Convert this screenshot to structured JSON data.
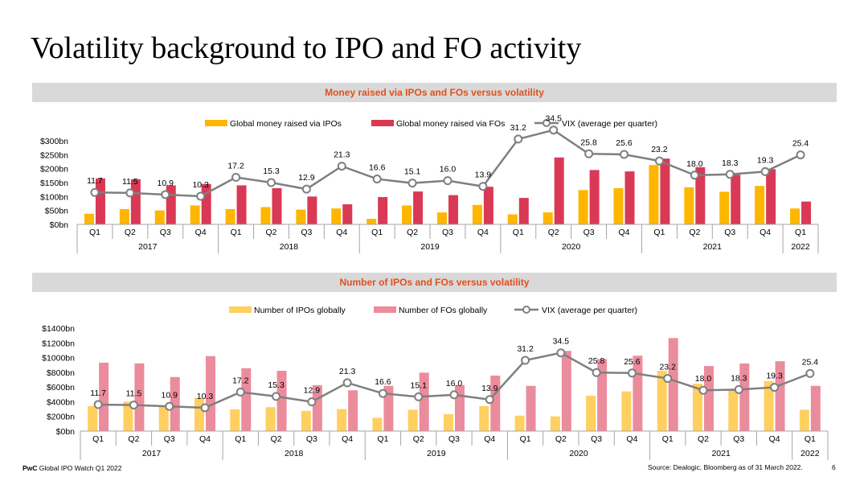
{
  "title": "Volatility background to IPO and FO activity",
  "footer": {
    "brand": "PwC",
    "report": "Global IPO Watch Q1 2022",
    "source": "Source: Dealogic, Bloomberg as of 31 March 2022.",
    "page": "6"
  },
  "colors": {
    "ipo_money": "#ffb600",
    "fo_money": "#d93954",
    "ipo_count": "#ffcf60",
    "fo_count": "#eb8c9d",
    "vix": "#7f7f7f",
    "band_title": "#e0501c",
    "band_bg": "#d9d9d9"
  },
  "chart_data": [
    {
      "type": "bar",
      "title": "Money raised via IPOs and FOs versus volatility",
      "categories": [
        "Q1",
        "Q2",
        "Q3",
        "Q4",
        "Q1",
        "Q2",
        "Q3",
        "Q4",
        "Q1",
        "Q2",
        "Q3",
        "Q4",
        "Q1",
        "Q2",
        "Q3",
        "Q4",
        "Q1",
        "Q2",
        "Q3",
        "Q4",
        "Q1"
      ],
      "years": [
        {
          "label": "2017",
          "span": 4
        },
        {
          "label": "2018",
          "span": 4
        },
        {
          "label": "2019",
          "span": 4
        },
        {
          "label": "2020",
          "span": 4
        },
        {
          "label": "2021",
          "span": 4
        },
        {
          "label": "2022",
          "span": 1
        }
      ],
      "yticks": [
        "$0bn",
        "$50bn",
        "$100bn",
        "$150bn",
        "$200bn",
        "$250bn",
        "$300bn"
      ],
      "ylim": [
        0,
        300
      ],
      "series": [
        {
          "name": "Global money raised via IPOs",
          "kind": "bar",
          "values": [
            38,
            55,
            50,
            68,
            55,
            62,
            53,
            57,
            20,
            68,
            43,
            70,
            36,
            43,
            123,
            130,
            213,
            133,
            117,
            138,
            57
          ]
        },
        {
          "name": "Global money raised via FOs",
          "kind": "bar",
          "values": [
            165,
            162,
            140,
            145,
            140,
            130,
            100,
            72,
            98,
            118,
            105,
            135,
            95,
            240,
            195,
            190,
            236,
            205,
            178,
            198,
            82
          ]
        },
        {
          "name": "VIX (average per quarter)",
          "kind": "line",
          "values": [
            11.7,
            11.5,
            10.9,
            10.3,
            17.2,
            15.3,
            12.9,
            21.3,
            16.6,
            15.1,
            16.0,
            13.9,
            31.2,
            34.5,
            25.8,
            25.6,
            23.2,
            18.0,
            18.3,
            19.3,
            25.4
          ]
        }
      ],
      "vix_labels": [
        "11.7",
        "11.5",
        "10.9",
        "10.3",
        "17.2",
        "15.3",
        "12.9",
        "21.3",
        "16.6",
        "15.1",
        "16.0",
        "13.9",
        "31.2",
        "34.5",
        "25.8",
        "25.6",
        "23.2",
        "18.0",
        "18.3",
        "19.3",
        "25.4"
      ]
    },
    {
      "type": "bar",
      "title": "Number of IPOs and FOs versus volatility",
      "categories": [
        "Q1",
        "Q2",
        "Q3",
        "Q4",
        "Q1",
        "Q2",
        "Q3",
        "Q4",
        "Q1",
        "Q2",
        "Q3",
        "Q4",
        "Q1",
        "Q2",
        "Q3",
        "Q4",
        "Q1",
        "Q2",
        "Q3",
        "Q4",
        "Q1"
      ],
      "years": [
        {
          "label": "2017",
          "span": 4
        },
        {
          "label": "2018",
          "span": 4
        },
        {
          "label": "2019",
          "span": 4
        },
        {
          "label": "2020",
          "span": 4
        },
        {
          "label": "2021",
          "span": 4
        },
        {
          "label": "2022",
          "span": 1
        }
      ],
      "yticks": [
        "$0bn",
        "$200bn",
        "$400bn",
        "$600bn",
        "$800bn",
        "$1000bn",
        "$1200bn",
        "$1400bn"
      ],
      "ylim": [
        0,
        1400
      ],
      "series": [
        {
          "name": "Number of IPOs globally",
          "kind": "bar",
          "values": [
            340,
            400,
            345,
            450,
            295,
            325,
            275,
            300,
            180,
            290,
            230,
            340,
            210,
            200,
            480,
            540,
            820,
            645,
            570,
            680,
            290
          ]
        },
        {
          "name": "Number of FOs globally",
          "kind": "bar",
          "values": [
            930,
            920,
            735,
            1020,
            855,
            820,
            625,
            555,
            615,
            795,
            625,
            755,
            615,
            1090,
            980,
            1025,
            1265,
            885,
            920,
            950,
            615
          ]
        },
        {
          "name": "VIX (average per quarter)",
          "kind": "line",
          "values": [
            11.7,
            11.5,
            10.9,
            10.3,
            17.2,
            15.3,
            12.9,
            21.3,
            16.6,
            15.1,
            16.0,
            13.9,
            31.2,
            34.5,
            25.8,
            25.6,
            23.2,
            18.0,
            18.3,
            19.3,
            25.4
          ]
        }
      ],
      "vix_labels": [
        "11.7",
        "11.5",
        "10.9",
        "10.3",
        "17.2",
        "15.3",
        "12.9",
        "21.3",
        "16.6",
        "15.1",
        "16.0",
        "13.9",
        "31.2",
        "34.5",
        "25.8",
        "25.6",
        "23.2",
        "18.0",
        "18.3",
        "19.3",
        "25.4"
      ]
    }
  ]
}
